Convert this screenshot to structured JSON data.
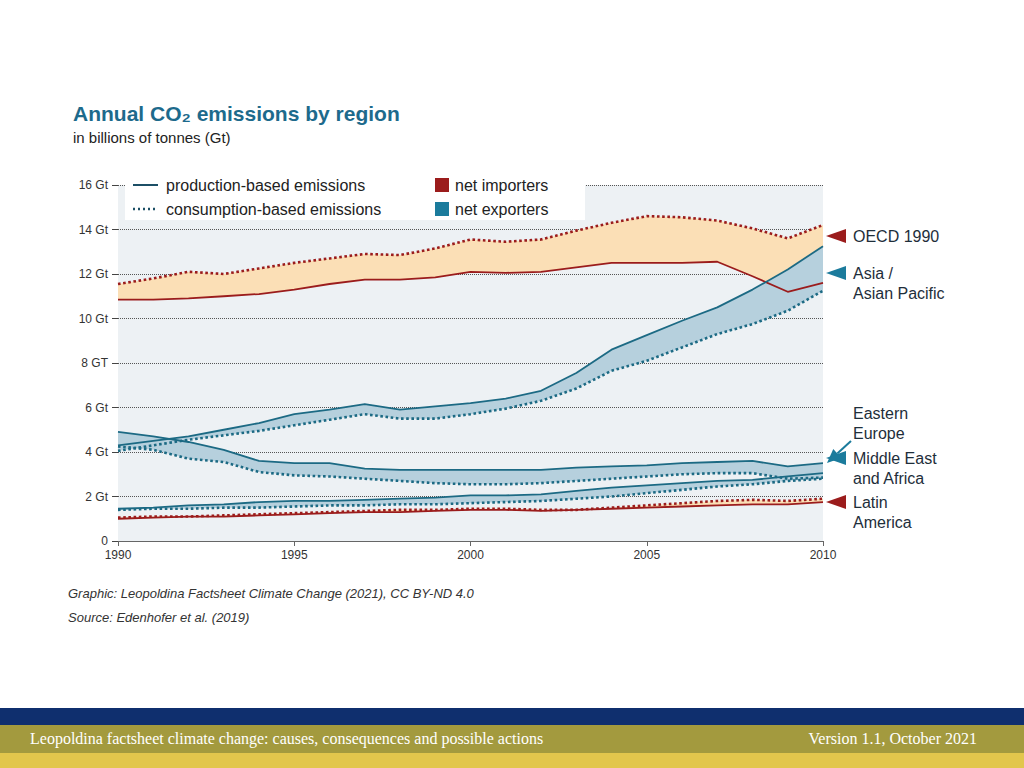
{
  "chart_data": {
    "type": "line",
    "title": "Annual CO₂ emissions by region",
    "subtitle": "in billions of tonnes (Gt)",
    "x": [
      1990,
      1991,
      1992,
      1993,
      1994,
      1995,
      1996,
      1997,
      1998,
      1999,
      2000,
      2001,
      2002,
      2003,
      2004,
      2005,
      2006,
      2007,
      2008,
      2009,
      2010
    ],
    "xlim": [
      1990,
      2010
    ],
    "xticks": [
      1990,
      1995,
      2000,
      2005,
      2010
    ],
    "ylim": [
      0,
      16
    ],
    "yticks": [
      0,
      {
        "value": 2,
        "label": "2 Gt"
      },
      {
        "value": 4,
        "label": "4 Gt"
      },
      {
        "value": 6,
        "label": "6 Gt"
      },
      {
        "value": 8,
        "label": "8 GT"
      },
      {
        "value": 10,
        "label": "10 Gt"
      },
      {
        "value": 12,
        "label": "12 Gt"
      },
      {
        "value": 14,
        "label": "14 Gt"
      },
      {
        "value": 16,
        "label": "16 Gt"
      }
    ],
    "grid": true,
    "line_key": [
      {
        "label": "production-based emissions",
        "line_style": "solid"
      },
      {
        "label": "consumption-based emissions",
        "line_style": "dotted"
      }
    ],
    "fill_key": [
      {
        "label": "net importers",
        "color": "#9b1c1c"
      },
      {
        "label": "net exporters",
        "color": "#1b7b9c"
      }
    ],
    "series": [
      {
        "name": "OECD 1990",
        "color": "#9b1c1c",
        "group": "net importers",
        "production": [
          10.85,
          10.85,
          10.9,
          11.0,
          11.1,
          11.3,
          11.55,
          11.75,
          11.75,
          11.85,
          12.1,
          12.05,
          12.1,
          12.3,
          12.5,
          12.5,
          12.5,
          12.55,
          11.9,
          11.2,
          11.6
        ],
        "consumption": [
          11.55,
          11.8,
          12.1,
          12.0,
          12.25,
          12.5,
          12.7,
          12.9,
          12.85,
          13.15,
          13.55,
          13.45,
          13.55,
          13.95,
          14.3,
          14.6,
          14.55,
          14.4,
          14.05,
          13.6,
          14.2
        ]
      },
      {
        "name": "Asia /\nAsian Pacific",
        "color": "#1c6a84",
        "group": "net exporters",
        "production": [
          4.3,
          4.5,
          4.7,
          5.0,
          5.3,
          5.7,
          5.9,
          6.15,
          5.9,
          6.05,
          6.2,
          6.4,
          6.75,
          7.55,
          8.6,
          9.25,
          9.9,
          10.5,
          11.3,
          12.2,
          13.25
        ],
        "consumption": [
          4.05,
          4.3,
          4.55,
          4.75,
          4.95,
          5.2,
          5.45,
          5.7,
          5.5,
          5.5,
          5.7,
          5.95,
          6.3,
          6.85,
          7.65,
          8.1,
          8.7,
          9.3,
          9.75,
          10.35,
          11.25
        ]
      },
      {
        "name": "Eastern\nEurope",
        "color": "#1c6a84",
        "group": "net exporters",
        "production": [
          4.9,
          4.7,
          4.45,
          4.1,
          3.6,
          3.5,
          3.5,
          3.25,
          3.2,
          3.2,
          3.2,
          3.2,
          3.2,
          3.3,
          3.35,
          3.4,
          3.5,
          3.55,
          3.6,
          3.35,
          3.5
        ],
        "consumption": [
          4.25,
          4.1,
          3.7,
          3.55,
          3.1,
          2.95,
          2.9,
          2.8,
          2.7,
          2.6,
          2.55,
          2.55,
          2.6,
          2.7,
          2.8,
          2.9,
          3.0,
          3.05,
          3.05,
          2.8,
          2.85
        ]
      },
      {
        "name": "Middle East\nand Africa",
        "color": "#1c6a84",
        "group": "net exporters",
        "production": [
          1.45,
          1.5,
          1.6,
          1.65,
          1.75,
          1.8,
          1.8,
          1.85,
          1.9,
          1.95,
          2.05,
          2.05,
          2.1,
          2.25,
          2.4,
          2.5,
          2.6,
          2.7,
          2.75,
          2.9,
          3.05
        ],
        "consumption": [
          1.4,
          1.45,
          1.45,
          1.5,
          1.5,
          1.55,
          1.6,
          1.6,
          1.65,
          1.65,
          1.7,
          1.75,
          1.8,
          1.9,
          2.0,
          2.15,
          2.3,
          2.45,
          2.55,
          2.7,
          2.8
        ]
      },
      {
        "name": "Latin\nAmerica",
        "color": "#9b1c1c",
        "group": "net importers",
        "production": [
          1.0,
          1.05,
          1.1,
          1.1,
          1.15,
          1.2,
          1.25,
          1.3,
          1.3,
          1.35,
          1.4,
          1.4,
          1.35,
          1.4,
          1.45,
          1.5,
          1.55,
          1.6,
          1.65,
          1.65,
          1.75
        ],
        "consumption": [
          1.05,
          1.1,
          1.1,
          1.15,
          1.2,
          1.25,
          1.3,
          1.35,
          1.4,
          1.4,
          1.45,
          1.45,
          1.4,
          1.4,
          1.5,
          1.6,
          1.7,
          1.8,
          1.85,
          1.8,
          1.9
        ]
      }
    ]
  },
  "credits": [
    "Graphic: Leopoldina Factsheet Climate Change (2021), CC BY-ND 4.0",
    "Source: Edenhofer et al. (2019)"
  ],
  "footer": {
    "left": "Leopoldina factsheet climate change: causes, consequences and possible actions",
    "right": "Version 1.1, October 2021"
  }
}
